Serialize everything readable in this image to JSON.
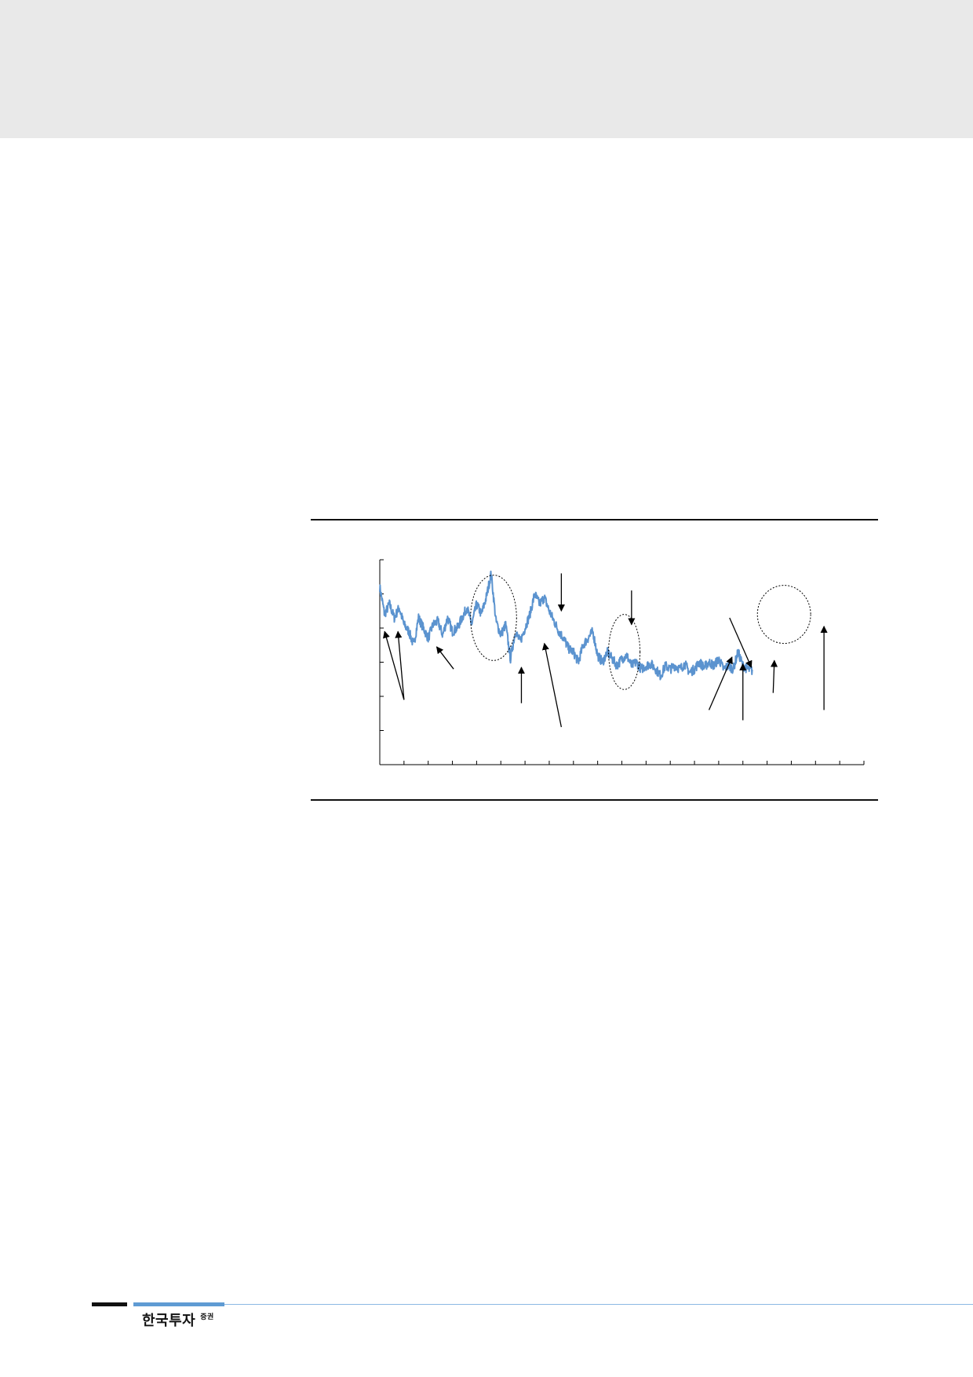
{
  "footer": {
    "brand_main": "한국투자",
    "brand_sub": "증권"
  },
  "colors": {
    "header_band": "#e9e9e9",
    "series_line": "#5b93cf",
    "rule": "#111111",
    "footer_accent": "#5f9bd3"
  },
  "chart_data": {
    "type": "line",
    "title": "",
    "xlabel": "",
    "ylabel": "",
    "xlim": [
      0,
      20
    ],
    "ylim": [
      0,
      6
    ],
    "y_ticks": [
      0,
      1,
      2,
      3,
      4,
      5,
      6
    ],
    "x_tick_count": 20,
    "grid": false,
    "series": [
      {
        "x": [
          0,
          0.2,
          0.4,
          0.6,
          0.8,
          1.0,
          1.2,
          1.4,
          1.6,
          1.8,
          2.0,
          2.2,
          2.4,
          2.6,
          2.8,
          3.0,
          3.2,
          3.4,
          3.6,
          3.8,
          4.0,
          4.2,
          4.4,
          4.6,
          4.8,
          5.0,
          5.2,
          5.4,
          5.6,
          5.8,
          6.0,
          6.2,
          6.4,
          6.6,
          6.8,
          7.0,
          7.2,
          7.4,
          7.6,
          7.8,
          8.0,
          8.2,
          8.4,
          8.6,
          8.8,
          9.0,
          9.2,
          9.4,
          9.6,
          9.8,
          10.0,
          10.2,
          10.4,
          10.6,
          10.8,
          11.0,
          11.2,
          11.4,
          11.6,
          11.8,
          12.0,
          12.2,
          12.4,
          12.6,
          12.8,
          13.0,
          13.2,
          13.4,
          13.6,
          13.8,
          14.0,
          14.2,
          14.4,
          14.6,
          14.8,
          15.0,
          15.2,
          15.4
        ],
        "values": [
          5.2,
          4.4,
          4.7,
          4.3,
          4.6,
          4.1,
          3.9,
          3.5,
          4.3,
          4.0,
          3.7,
          4.1,
          4.2,
          3.8,
          4.3,
          3.9,
          4.0,
          4.3,
          4.6,
          4.1,
          4.7,
          4.4,
          4.9,
          5.6,
          4.2,
          3.8,
          4.1,
          3.1,
          3.9,
          3.6,
          4.0,
          4.4,
          5.0,
          4.7,
          4.9,
          4.5,
          4.2,
          3.9,
          3.7,
          3.4,
          3.3,
          3.0,
          3.5,
          3.7,
          3.9,
          3.2,
          3.0,
          3.3,
          3.1,
          2.9,
          3.1,
          3.2,
          2.9,
          3.0,
          2.8,
          2.9,
          2.95,
          2.8,
          2.6,
          2.9,
          2.8,
          2.9,
          2.8,
          2.95,
          2.7,
          2.8,
          3.0,
          2.85,
          3.0,
          2.9,
          3.1,
          2.8,
          2.9,
          2.8,
          3.3,
          2.9,
          2.8,
          2.75
        ]
      }
    ],
    "annotations": [
      {
        "shape": "arrow",
        "from": [
          1.0,
          1.9
        ],
        "to": [
          0.2,
          3.9
        ]
      },
      {
        "shape": "arrow",
        "from": [
          1.0,
          1.9
        ],
        "to": [
          0.75,
          3.9
        ]
      },
      {
        "shape": "arrow",
        "from": [
          3.05,
          2.8
        ],
        "to": [
          2.35,
          3.45
        ]
      },
      {
        "shape": "ellipse",
        "center": [
          4.7,
          4.3
        ],
        "radii": [
          0.95,
          1.25
        ]
      },
      {
        "shape": "arrow",
        "from": [
          5.85,
          1.8
        ],
        "to": [
          5.85,
          2.85
        ]
      },
      {
        "shape": "arrow",
        "from": [
          7.5,
          1.1
        ],
        "to": [
          6.8,
          3.55
        ]
      },
      {
        "shape": "arrow",
        "from": [
          7.5,
          5.6
        ],
        "to": [
          7.5,
          4.5
        ]
      },
      {
        "shape": "ellipse",
        "center": [
          10.1,
          3.3
        ],
        "radii": [
          0.65,
          1.1
        ]
      },
      {
        "shape": "arrow",
        "from": [
          10.4,
          5.1
        ],
        "to": [
          10.4,
          4.1
        ]
      },
      {
        "shape": "arrow",
        "from": [
          14.45,
          4.3
        ],
        "to": [
          15.35,
          2.85
        ]
      },
      {
        "shape": "arrow",
        "from": [
          13.6,
          1.6
        ],
        "to": [
          14.55,
          3.15
        ]
      },
      {
        "shape": "arrow",
        "from": [
          15.0,
          1.3
        ],
        "to": [
          15.0,
          2.95
        ]
      },
      {
        "shape": "ellipse",
        "center": [
          16.7,
          4.4
        ],
        "radii": [
          1.1,
          0.85
        ]
      },
      {
        "shape": "arrow",
        "from": [
          16.25,
          2.1
        ],
        "to": [
          16.3,
          3.05
        ]
      },
      {
        "shape": "arrow",
        "from": [
          18.35,
          1.6
        ],
        "to": [
          18.35,
          4.05
        ]
      }
    ]
  }
}
